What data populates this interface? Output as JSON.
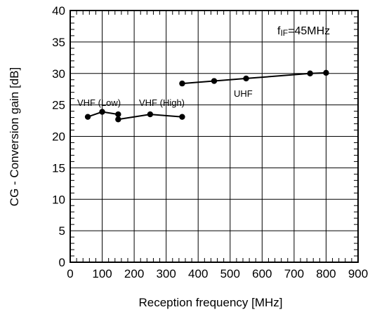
{
  "chart_data": {
    "type": "line",
    "xlabel": "Reception frequency [MHz]",
    "ylabel": "CG - Conversion gain [dB]",
    "xlim": [
      0,
      900
    ],
    "ylim": [
      0,
      40
    ],
    "xticks": [
      0,
      100,
      200,
      300,
      400,
      500,
      600,
      700,
      800,
      900
    ],
    "yticks": [
      0,
      5,
      10,
      15,
      20,
      25,
      30,
      35,
      40
    ],
    "grid": true,
    "note_main": "f",
    "note_sub": "IF",
    "note_rest": "=45MHz",
    "series": [
      {
        "name": "VHF (Low)",
        "x": [
          55,
          100,
          150
        ],
        "y": [
          23.1,
          23.9,
          23.5
        ]
      },
      {
        "name": "VHF (High)",
        "x": [
          150,
          250,
          350
        ],
        "y": [
          22.7,
          23.5,
          23.1
        ]
      },
      {
        "name": "UHF",
        "x": [
          350,
          450,
          550,
          750,
          800
        ],
        "y": [
          28.4,
          28.8,
          29.2,
          30.0,
          30.1
        ]
      }
    ]
  }
}
